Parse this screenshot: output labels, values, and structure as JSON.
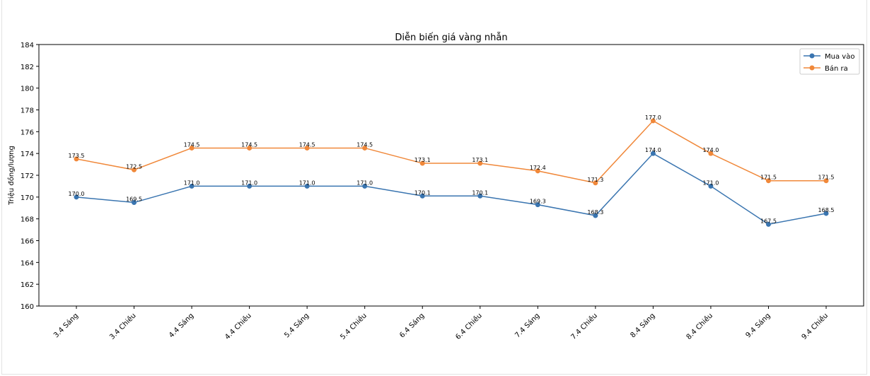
{
  "chart_data": {
    "type": "line",
    "title": "Diễn biến giá vàng nhẫn",
    "xlabel": "",
    "ylabel": "Triệu đồng/lượng",
    "ylim": [
      160,
      184
    ],
    "yticks": [
      160,
      162,
      164,
      166,
      168,
      170,
      172,
      174,
      176,
      178,
      180,
      182,
      184
    ],
    "categories": [
      "3.4 Sáng",
      "3.4 Chiều",
      "4.4 Sáng",
      "4.4 Chiều",
      "5.4 Sáng",
      "5.4 Chiều",
      "6.4 Sáng",
      "6.4 Chiều",
      "7.4 Sáng",
      "7.4 Chiều",
      "8.4 Sáng",
      "8.4 Chiều",
      "9.4 Sáng",
      "9.4 Chiều"
    ],
    "series": [
      {
        "name": "Mua vào",
        "color": "#3a75b0",
        "values": [
          170.0,
          169.5,
          171.0,
          171.0,
          171.0,
          171.0,
          170.1,
          170.1,
          169.3,
          168.3,
          174.0,
          171.0,
          167.5,
          168.5
        ]
      },
      {
        "name": "Bán ra",
        "color": "#f0883a",
        "values": [
          173.5,
          172.5,
          174.5,
          174.5,
          174.5,
          174.5,
          173.1,
          173.1,
          172.4,
          171.3,
          177.0,
          174.0,
          171.5,
          171.5
        ]
      }
    ],
    "grid": false,
    "legend": "top-right",
    "marker": "circle",
    "data_labels": true
  }
}
